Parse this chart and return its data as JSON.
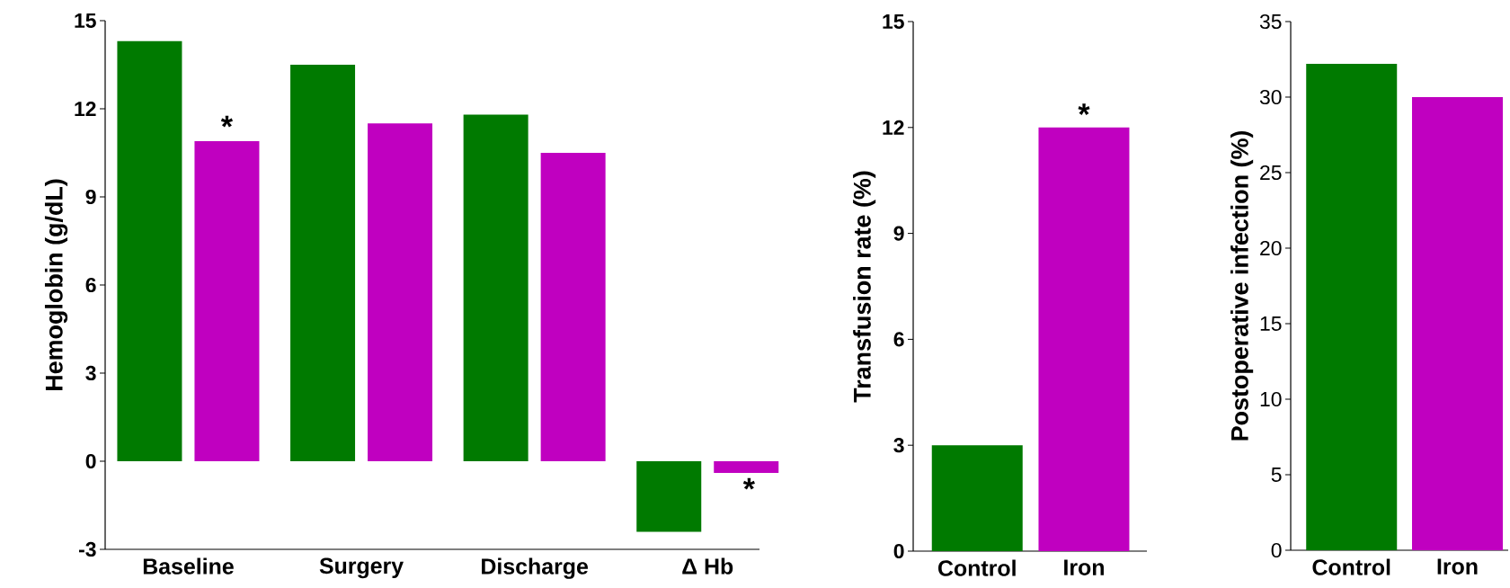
{
  "chart_data": [
    {
      "type": "bar",
      "ylabel": "Hemoglobin (g/dL)",
      "categories": [
        "Baseline",
        "Surgery",
        "Discharge",
        "Δ Hb"
      ],
      "series": [
        {
          "color": "#007a00",
          "values": [
            14.3,
            13.5,
            11.8,
            -2.4
          ]
        },
        {
          "color": "#c000c0",
          "values": [
            10.9,
            11.5,
            10.5,
            -0.4
          ]
        }
      ],
      "ylim": [
        -3,
        15
      ],
      "yticks": [
        -3,
        0,
        3,
        6,
        9,
        12,
        15
      ],
      "annotations": [
        "*",
        "*"
      ]
    },
    {
      "type": "bar",
      "ylabel": "Transfusion rate (%)",
      "categories": [
        "Control",
        "Iron"
      ],
      "values": [
        3,
        12
      ],
      "colors": [
        "#007a00",
        "#c000c0"
      ],
      "ylim": [
        0,
        15
      ],
      "yticks": [
        0,
        3,
        6,
        9,
        12,
        15
      ],
      "annotations": [
        {
          "text": "*",
          "x": "Iron",
          "y": 12
        }
      ]
    },
    {
      "type": "bar",
      "ylabel": "Postoperative infection (%)",
      "categories": [
        "Control",
        "Iron"
      ],
      "values": [
        32.2,
        30.0
      ],
      "colors": [
        "#007a00",
        "#c000c0"
      ],
      "ylim": [
        0,
        35
      ],
      "yticks": [
        0,
        5,
        10,
        15,
        20,
        25,
        30,
        35
      ]
    }
  ]
}
